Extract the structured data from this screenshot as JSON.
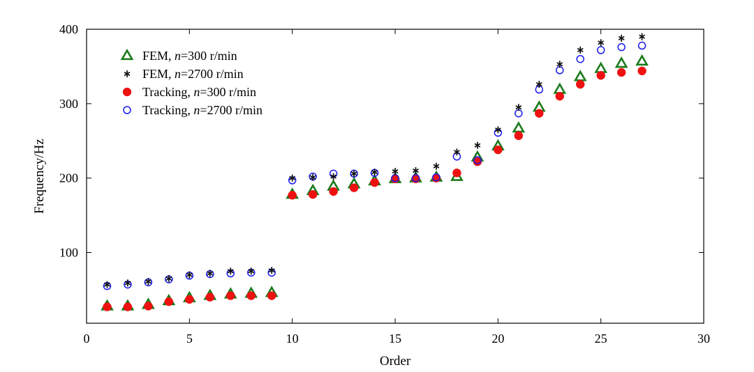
{
  "chart_data": {
    "type": "scatter",
    "title": "",
    "xlabel": "Order",
    "ylabel": "Frequency/Hz",
    "xlim": [
      0,
      30
    ],
    "ylim": [
      5,
      400
    ],
    "xticks": [
      0,
      5,
      10,
      15,
      20,
      25,
      30
    ],
    "yticks": [
      100,
      200,
      300,
      400
    ],
    "grid": false,
    "legend_position": "top-left",
    "x": [
      1,
      2,
      3,
      4,
      5,
      6,
      7,
      8,
      9,
      10,
      11,
      12,
      13,
      14,
      15,
      16,
      17,
      18,
      19,
      20,
      21,
      22,
      23,
      24,
      25,
      26,
      27
    ],
    "series": [
      {
        "name": "FEM, n=300 r/min",
        "legend_prefix": "FEM, ",
        "legend_var": "n",
        "legend_suffix": "=300 r/min",
        "marker": "triangle",
        "color": "#1a7a1a",
        "values": [
          28,
          28,
          30,
          35,
          39,
          42,
          44,
          45,
          46,
          178,
          183,
          189,
          192,
          196,
          199,
          200,
          201,
          202,
          228,
          243,
          267,
          295,
          319,
          336,
          347,
          354,
          357
        ]
      },
      {
        "name": "FEM, n=2700 r/min",
        "legend_prefix": "FEM, ",
        "legend_var": "n",
        "legend_suffix": "=2700 r/min",
        "marker": "asterisk",
        "color": "#111111",
        "values": [
          57,
          59,
          61,
          65,
          70,
          72,
          75,
          75,
          76,
          200,
          201,
          202,
          206,
          208,
          209,
          210,
          216,
          235,
          244,
          265,
          295,
          326,
          353,
          372,
          382,
          388,
          390
        ]
      },
      {
        "name": "Tracking, n=300 r/min",
        "legend_prefix": "Tracking, ",
        "legend_var": "n",
        "legend_suffix": "=300 r/min",
        "marker": "filled-circle",
        "color": "#ee1111",
        "values": [
          27,
          27,
          28,
          34,
          37,
          40,
          42,
          42,
          42,
          177,
          178,
          182,
          187,
          194,
          199,
          199,
          200,
          207,
          222,
          238,
          257,
          287,
          310,
          326,
          338,
          342,
          344
        ]
      },
      {
        "name": "Tracking, n=2700 r/min",
        "legend_prefix": "Tracking, ",
        "legend_var": "n",
        "legend_suffix": "=2700 r/min",
        "marker": "open-circle",
        "color": "#1a1aee",
        "values": [
          55,
          57,
          60,
          64,
          69,
          71,
          72,
          73,
          73,
          197,
          202,
          206,
          206,
          207,
          200,
          200,
          201,
          229,
          224,
          261,
          287,
          319,
          345,
          360,
          372,
          376,
          378
        ]
      }
    ]
  }
}
